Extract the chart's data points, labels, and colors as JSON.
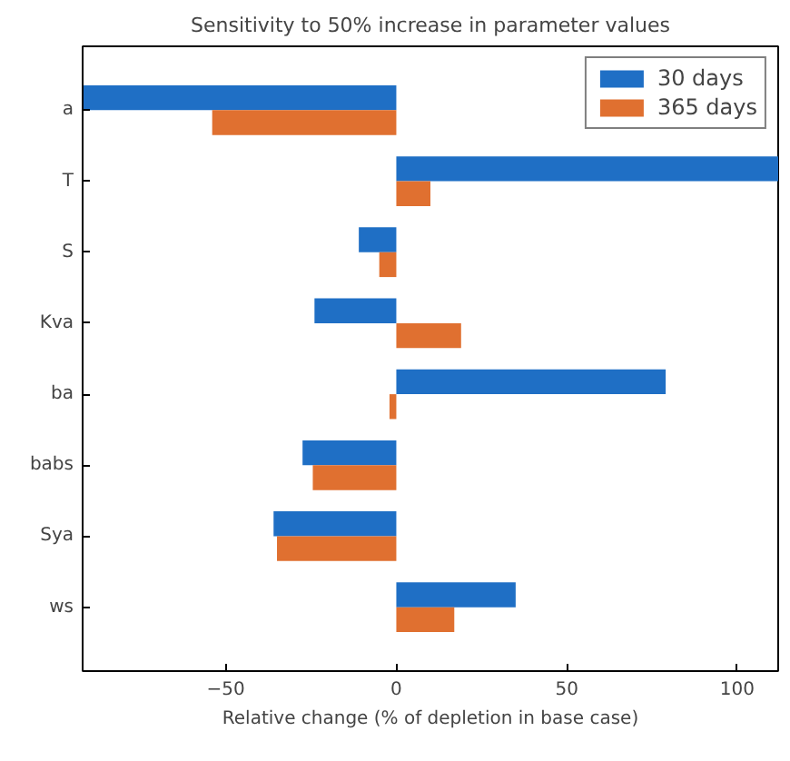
{
  "chart_data": {
    "type": "bar",
    "orientation": "horizontal",
    "title": "Sensitivity to 50% increase in parameter values",
    "xlabel": "Relative change (% of depletion in base case)",
    "categories": [
      "a",
      "T",
      "S",
      "Kva",
      "ba",
      "babs",
      "Sya",
      "ws"
    ],
    "series": [
      {
        "name": "30 days",
        "color": "#1f6fc5",
        "values": [
          -92,
          112,
          -11,
          -24,
          79,
          -27.5,
          -36,
          35
        ]
      },
      {
        "name": "365 days",
        "color": "#e07030",
        "values": [
          -54,
          10,
          -5,
          19,
          -2,
          -24.5,
          -35,
          17
        ]
      }
    ],
    "xlim": [
      -92,
      112
    ],
    "xticks": [
      -50,
      0,
      50,
      100
    ],
    "grid": false,
    "legend": "top right"
  }
}
